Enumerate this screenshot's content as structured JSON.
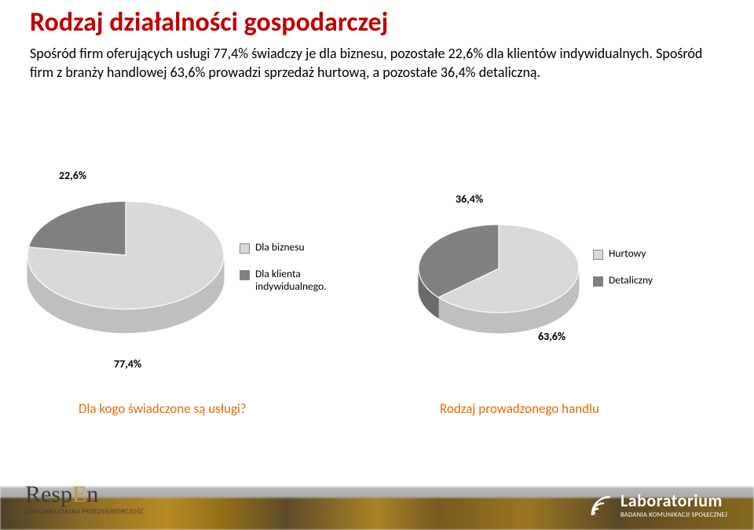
{
  "title": "Rodzaj działalności gospodarczej",
  "description": "Spośród firm oferujących usługi 77,4% świadczy je dla biznesu, pozostałe 22,6% dla klientów indywidualnych. Spośród firm z branży handlowej 63,6% prowadzi sprzedaż hurtową, a pozostałe 36,4% detaliczną.",
  "chart_left": {
    "type": "pie",
    "title": "Dla kogo świadczone są usługi?",
    "title_color": "#e46c0a",
    "title_fontsize": 17,
    "slices": [
      {
        "label": "Dla biznesu",
        "value": 77.4,
        "value_label": "77,4%",
        "color": "#d9d9d9",
        "side_color": "#bfbfbf"
      },
      {
        "label": "Dla klienta indywidualnego.",
        "value": 22.6,
        "value_label": "22,6%",
        "color": "#808080",
        "side_color": "#6a6a6a"
      }
    ],
    "background_color": "#ffffff",
    "label_fontsize": 14,
    "legend_fontsize": 13.5,
    "depth": 30,
    "radius": 125
  },
  "chart_right": {
    "type": "pie",
    "title": "Rodzaj prowadzonego handlu",
    "title_color": "#e46c0a",
    "title_fontsize": 17,
    "slices": [
      {
        "label": "Hurtowy",
        "value": 63.6,
        "value_label": "63,6%",
        "color": "#d9d9d9",
        "side_color": "#bfbfbf"
      },
      {
        "label": "Detaliczny",
        "value": 36.4,
        "value_label": "36,4%",
        "color": "#808080",
        "side_color": "#6a6a6a"
      }
    ],
    "background_color": "#ffffff",
    "label_fontsize": 14,
    "legend_fontsize": 13.5,
    "depth": 26,
    "radius": 102
  },
  "footer": {
    "respen_name_1": "Resp",
    "respen_name_2": "E",
    "respen_name_3": "n",
    "respen_sub": "ODPOWIEDZIALNA PRZEDSIĘBIORCZOŚĆ",
    "lab_name": "Laboratorium",
    "lab_sub": "BADANIA KOMUNIKACJI SPOŁECZNEJ"
  }
}
